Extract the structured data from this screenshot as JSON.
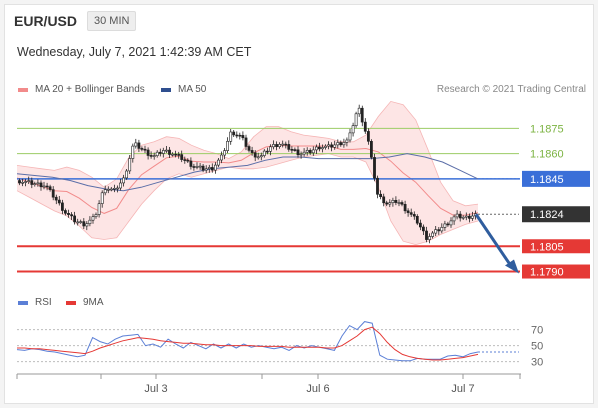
{
  "header": {
    "pair": "EUR/USD",
    "interval": "30 MIN",
    "timestamp": "Wednesday, July 7, 2021 1:42:39 AM CET"
  },
  "legend": {
    "ma20_label": "MA 20 + Bollinger Bands",
    "ma50_label": "MA 50",
    "credit": "Research © 2021 Trading Central",
    "rsi_label": "RSI",
    "ma9_label": "9MA"
  },
  "colors": {
    "bullish_level": "#9ccc65",
    "pivot": "#3a6fd8",
    "support": "#e53935",
    "bollinger_fill": "#fde0e0",
    "ma20": "#f28b8b",
    "ma50": "#5b6ea8",
    "rsi": "#5b7fd6",
    "rsi_ma": "#e53935",
    "forecast_arrow": "#2f5d9e",
    "last_price": "#333333"
  },
  "chart_data": [
    {
      "type": "candlestick",
      "title": "",
      "xlabel": "",
      "ylabel": "",
      "x_ticks": [
        "Jul 3",
        "Jul 6",
        "Jul 7"
      ],
      "ylim": [
        1.1782,
        1.1893
      ],
      "levels": [
        {
          "value": 1.1875,
          "label": "1.1875",
          "kind": "resistance"
        },
        {
          "value": 1.186,
          "label": "1.1860",
          "kind": "resistance"
        },
        {
          "value": 1.1845,
          "label": "1.1845",
          "kind": "pivot"
        },
        {
          "value": 1.1824,
          "label": "1.1824",
          "kind": "last"
        },
        {
          "value": 1.1805,
          "label": "1.1805",
          "kind": "support"
        },
        {
          "value": 1.179,
          "label": "1.1790",
          "kind": "support"
        }
      ],
      "close_path": [
        1.1844,
        1.1843,
        1.1842,
        1.1841,
        1.1833,
        1.1825,
        1.182,
        1.1818,
        1.1822,
        1.184,
        1.1838,
        1.1845,
        1.1866,
        1.1862,
        1.1858,
        1.1862,
        1.186,
        1.1857,
        1.1853,
        1.1851,
        1.1851,
        1.1858,
        1.1873,
        1.187,
        1.186,
        1.1858,
        1.1864,
        1.1866,
        1.1863,
        1.186,
        1.1861,
        1.1864,
        1.1864,
        1.1866,
        1.1868,
        1.1888,
        1.1868,
        1.1835,
        1.183,
        1.1832,
        1.1826,
        1.182,
        1.181,
        1.1814,
        1.1818,
        1.1823,
        1.1822,
        1.1824
      ],
      "bollinger_upper": [
        1.1853,
        1.1852,
        1.1851,
        1.185,
        1.1852,
        1.185,
        1.1846,
        1.184,
        1.1845,
        1.1858,
        1.1865,
        1.1867,
        1.187,
        1.1869,
        1.1865,
        1.1862,
        1.186,
        1.1857,
        1.1861,
        1.187,
        1.1876,
        1.1876,
        1.1873,
        1.1871,
        1.187,
        1.1869,
        1.1867,
        1.1867,
        1.1871,
        1.1882,
        1.1891,
        1.1889,
        1.188,
        1.1862,
        1.1843,
        1.1832,
        1.1829,
        1.183
      ],
      "bollinger_lower": [
        1.1838,
        1.1834,
        1.183,
        1.1826,
        1.1823,
        1.1817,
        1.181,
        1.1809,
        1.181,
        1.182,
        1.183,
        1.1838,
        1.1845,
        1.1848,
        1.1846,
        1.1848,
        1.185,
        1.1852,
        1.1851,
        1.1851,
        1.1852,
        1.1854,
        1.1856,
        1.1858,
        1.1859,
        1.186,
        1.1858,
        1.1858,
        1.1855,
        1.184,
        1.182,
        1.1808,
        1.1806,
        1.1808,
        1.1812,
        1.1815,
        1.1818,
        1.182
      ],
      "ma50": [
        1.1848,
        1.1847,
        1.1846,
        1.1844,
        1.1841,
        1.1839,
        1.1838,
        1.184,
        1.1843,
        1.1846,
        1.1849,
        1.1851,
        1.1852,
        1.1853,
        1.1856,
        1.1858,
        1.1858,
        1.1857,
        1.1857,
        1.1857,
        1.1857,
        1.1858,
        1.186,
        1.1858,
        1.1855,
        1.185,
        1.1845
      ],
      "forecast": {
        "from": 1.1824,
        "to": 1.179
      }
    },
    {
      "type": "line",
      "title": "",
      "y_ticks": [
        70,
        50,
        30
      ],
      "ylim": [
        22,
        82
      ],
      "series": [
        {
          "name": "RSI",
          "values": [
            45,
            44,
            46,
            45,
            43,
            42,
            40,
            38,
            36,
            38,
            60,
            55,
            52,
            58,
            62,
            63,
            64,
            50,
            52,
            48,
            58,
            52,
            47,
            54,
            50,
            46,
            52,
            47,
            52,
            47,
            52,
            48,
            50,
            48,
            46,
            48,
            44,
            50,
            47,
            50,
            48,
            46,
            44,
            62,
            75,
            70,
            80,
            78,
            38,
            33,
            32,
            31,
            31,
            34,
            33,
            33,
            33,
            37,
            38,
            36,
            40,
            42
          ]
        },
        {
          "name": "9MA",
          "values": [
            47,
            47,
            46,
            46,
            45,
            44,
            43,
            42,
            41,
            40,
            43,
            47,
            50,
            53,
            56,
            58,
            60,
            59,
            58,
            56,
            55,
            54,
            53,
            53,
            52,
            51,
            51,
            50,
            50,
            50,
            50,
            50,
            49,
            49,
            49,
            49,
            48,
            48,
            48,
            48,
            48,
            47,
            47,
            50,
            56,
            62,
            70,
            73,
            65,
            54,
            45,
            39,
            36,
            34,
            33,
            32,
            32,
            33,
            34,
            35,
            37,
            39
          ]
        }
      ]
    }
  ]
}
